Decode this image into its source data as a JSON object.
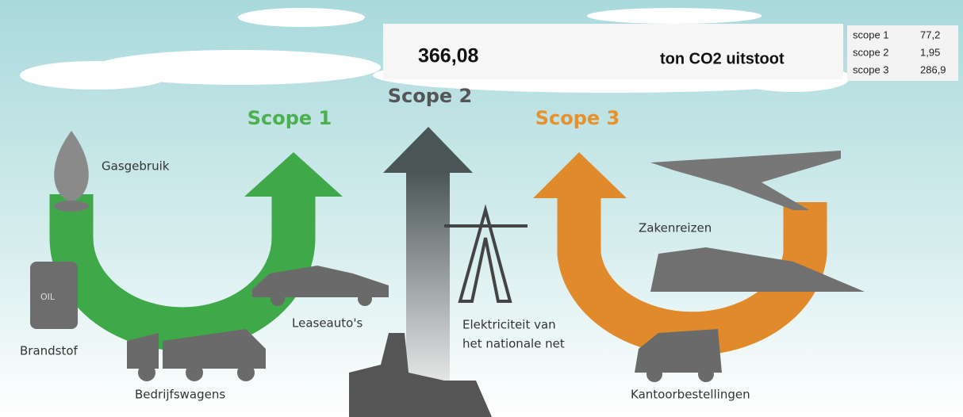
{
  "header": {
    "total": "366,08",
    "unit": "ton CO2 uitstoot"
  },
  "table": {
    "rows": [
      [
        "scope 1",
        "77,2"
      ],
      [
        "scope 2",
        "1,95"
      ],
      [
        "scope 3",
        "286,9"
      ]
    ]
  },
  "scopes": [
    "Scope 1",
    "Scope 2",
    "Scope 3"
  ],
  "labels": {
    "gas": "Gasgebruik",
    "fuel": "Brandstof",
    "oil": "OIL",
    "trucks": "Bedrijfswagens",
    "lease": "Leaseauto's",
    "electricity": [
      "Elektriciteit van",
      "het nationale net"
    ],
    "travel": "Zakenreizen",
    "orders": "Kantoorbestellingen"
  }
}
